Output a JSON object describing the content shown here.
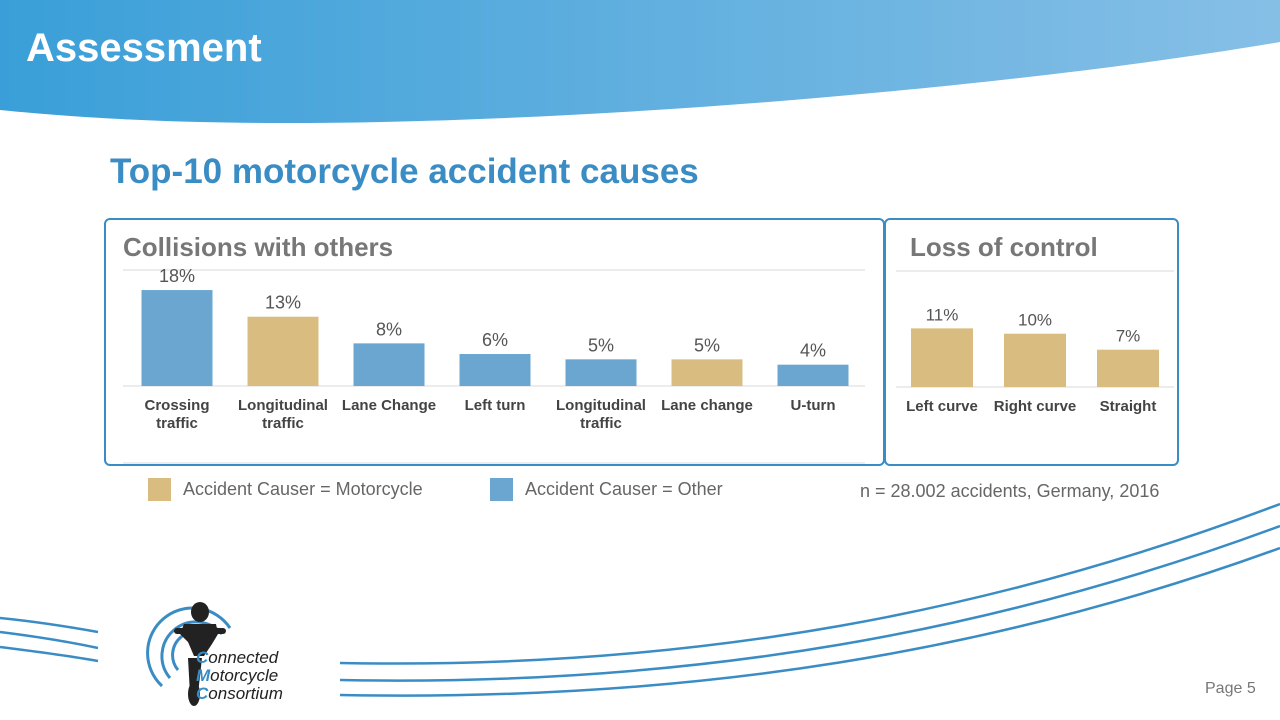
{
  "slide": {
    "title": "Assessment",
    "subtitle": "Top-10 motorcycle accident causes",
    "page": "Page 5"
  },
  "colors": {
    "motorcycle": "#d9bc7f",
    "other": "#6aa6d0",
    "accent": "#3a8cc4"
  },
  "legend": {
    "motorcycle_label": "Accident Causer = Motorcycle",
    "other_label": "Accident Causer = Other"
  },
  "source_note": "n = 28.002 accidents, Germany, 2016",
  "logo": {
    "line1_cap": "C",
    "line1_rest": "onnected",
    "line2_cap": "M",
    "line2_rest": "otorcycle",
    "line3_cap": "C",
    "line3_rest": "onsortium"
  },
  "chart_data": [
    {
      "type": "bar",
      "title": "Collisions with others",
      "categories": [
        "Crossing traffic",
        "Longitudinal traffic",
        "Lane Change",
        "Left turn",
        "Longitudinal traffic",
        "Lane change",
        "U-turn"
      ],
      "values": [
        18,
        13,
        8,
        6,
        5,
        5,
        4
      ],
      "labels": [
        "18%",
        "13%",
        "8%",
        "6%",
        "5%",
        "5%",
        "4%"
      ],
      "causer": [
        "Other",
        "Motorcycle",
        "Other",
        "Other",
        "Other",
        "Motorcycle",
        "Other"
      ],
      "unit": "%",
      "ylim": [
        0,
        18
      ],
      "grid": false
    },
    {
      "type": "bar",
      "title": "Loss of control",
      "categories": [
        "Left curve",
        "Right curve",
        "Straight"
      ],
      "values": [
        11,
        10,
        7
      ],
      "labels": [
        "11%",
        "10%",
        "7%"
      ],
      "causer": [
        "Motorcycle",
        "Motorcycle",
        "Motorcycle"
      ],
      "unit": "%",
      "ylim": [
        0,
        18
      ],
      "grid": false
    }
  ]
}
